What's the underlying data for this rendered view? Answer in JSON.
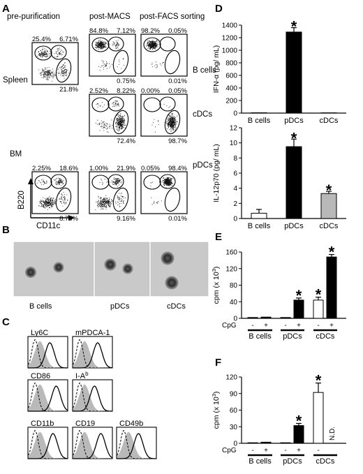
{
  "panels": {
    "A": "A",
    "B": "B",
    "C": "C",
    "D": "D",
    "E": "E",
    "F": "F"
  },
  "facs": {
    "columns": [
      "pre-purification",
      "post-MACS",
      "post-FACS sorting"
    ],
    "row_labels": [
      "Spleen",
      "BM"
    ],
    "population_labels": [
      "B cells",
      "cDCs",
      "pDCs"
    ],
    "axis_y": "B220",
    "axis_x": "CD11c",
    "spleen_pre": [
      "25.4%",
      "6.71%",
      "21.8%"
    ],
    "bm_pre": [
      "2.25%",
      "18.6%",
      "8.75%"
    ],
    "bcell_macs": [
      "84.8%",
      "7.12%",
      "0.75%"
    ],
    "bcell_facs": [
      "98.2%",
      "0.05%",
      "0.01%"
    ],
    "cdc_macs": [
      "2.52%",
      "8.22%",
      "72.4%"
    ],
    "cdc_facs": [
      "0.00%",
      "0.05%",
      "98.7%"
    ],
    "pdc_macs": [
      "1.00%",
      "21.9%",
      "9.16%"
    ],
    "pdc_facs": [
      "0.05%",
      "98.4%",
      "0.01%"
    ]
  },
  "morphology": {
    "labels": [
      "B cells",
      "pDCs",
      "cDCs"
    ]
  },
  "histograms": {
    "markers": [
      "Ly6C",
      "mPDCA-1",
      "CD86",
      "I-A",
      "CD11b",
      "CD19",
      "CD49b"
    ],
    "ia_superscript": "b"
  },
  "chart_data": [
    {
      "type": "bar",
      "panel": "D-top",
      "categories": [
        "B cells",
        "pDCs",
        "cDCs"
      ],
      "values": [
        5,
        1290,
        4
      ],
      "errors": [
        0,
        70,
        0
      ],
      "ylabel": "IFN-α (pg/ mL)",
      "ylim": [
        0,
        1400
      ],
      "yticks": [
        "0",
        "200",
        "400",
        "600",
        "800",
        "1000",
        "1200",
        "1400"
      ],
      "fills": [
        "#ffffff",
        "#000000",
        "#ffffff"
      ],
      "significance": [
        "",
        "*",
        ""
      ]
    },
    {
      "type": "bar",
      "panel": "D-bottom",
      "categories": [
        "B cells",
        "pDCs",
        "cDCs"
      ],
      "values": [
        0.7,
        9.5,
        3.3
      ],
      "errors": [
        0.5,
        1.0,
        0.3
      ],
      "ylabel": "IL-12p70 (pg/ mL)",
      "ylim": [
        0,
        12
      ],
      "yticks": [
        "0",
        "2",
        "4",
        "6",
        "8",
        "10",
        "12"
      ],
      "fills": [
        "#ffffff",
        "#000000",
        "#b8b8b8"
      ],
      "significance": [
        "",
        "*",
        "*"
      ]
    },
    {
      "type": "bar",
      "panel": "E",
      "groups": [
        "B cells",
        "pDCs",
        "cDCs"
      ],
      "cpg": [
        "-",
        "+",
        "-",
        "+",
        "-",
        "+"
      ],
      "cpg_label": "CpG",
      "values": [
        2,
        3,
        2,
        44,
        44,
        148
      ],
      "errors": [
        0,
        0,
        0,
        5,
        7,
        6
      ],
      "fills": [
        "#000000",
        "#000000",
        "#000000",
        "#000000",
        "#ffffff",
        "#000000"
      ],
      "ylabel": "cpm (x 10",
      "ylabel_sup": "3",
      "ylabel_end": ")",
      "ylim": [
        0,
        160
      ],
      "yticks": [
        "0",
        "40",
        "80",
        "120",
        "160"
      ],
      "significance": [
        "",
        "",
        "",
        "*",
        "*",
        "*"
      ]
    },
    {
      "type": "bar",
      "panel": "F",
      "groups": [
        "B cells",
        "pDCs",
        "cDCs"
      ],
      "cpg": [
        "-",
        "+",
        "-",
        "+",
        "-",
        "+"
      ],
      "cpg_label": "CpG",
      "values": [
        1,
        2,
        1,
        32,
        92,
        null
      ],
      "errors": [
        0,
        0,
        0,
        4,
        17,
        0
      ],
      "fills": [
        "#000000",
        "#000000",
        "#000000",
        "#000000",
        "#ffffff",
        "#000000"
      ],
      "ylabel": "cpm (x 10",
      "ylabel_sup": "3",
      "ylabel_end": ")",
      "ylim": [
        0,
        120
      ],
      "yticks": [
        "0",
        "30",
        "60",
        "90",
        "120"
      ],
      "significance": [
        "",
        "",
        "",
        "*",
        "*",
        ""
      ],
      "nd_label": "N.D."
    }
  ]
}
